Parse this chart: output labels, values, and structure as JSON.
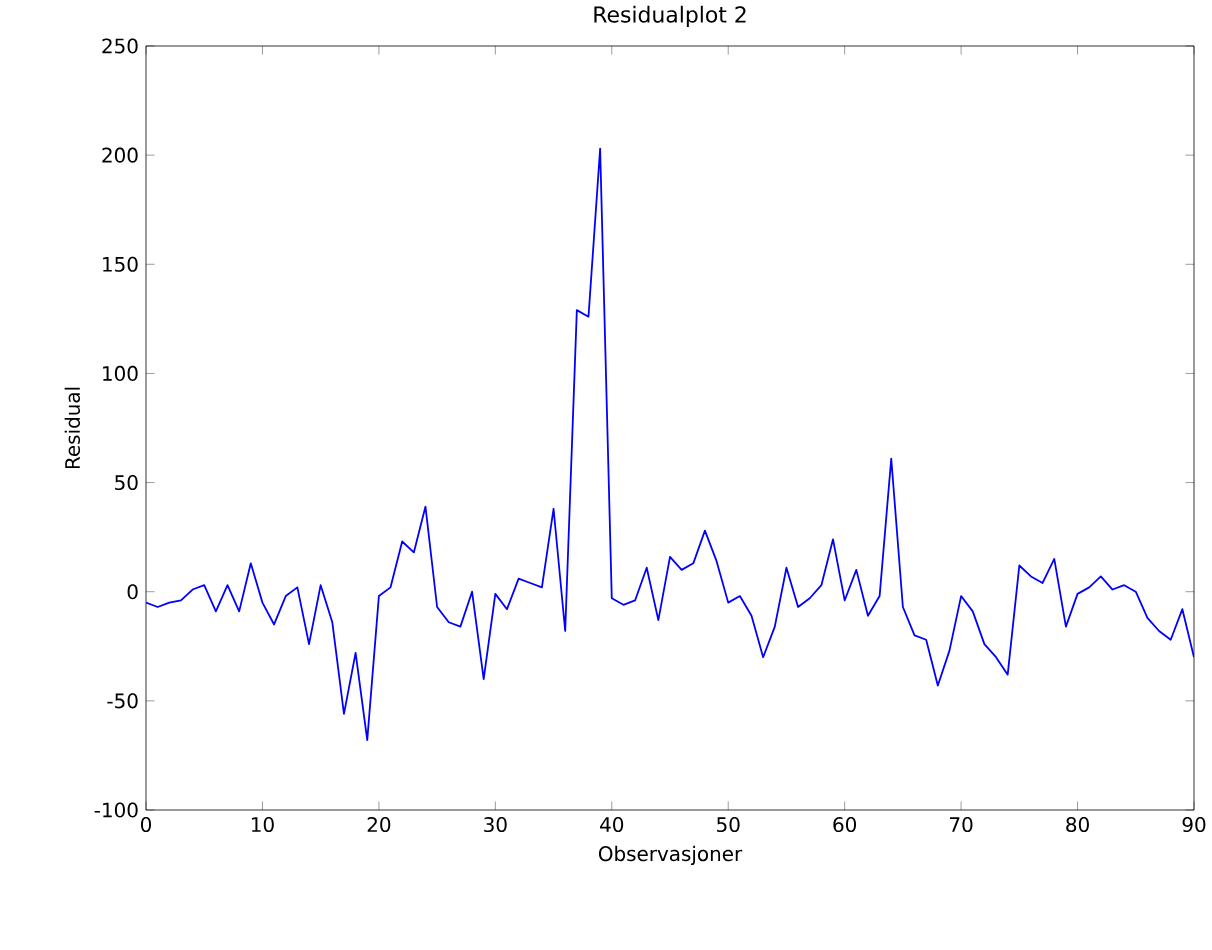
{
  "chart_data": {
    "type": "line",
    "title": "Residualplot 2",
    "xlabel": "Observasjoner",
    "ylabel": "Residual",
    "x": [
      0,
      1,
      2,
      3,
      4,
      5,
      6,
      7,
      8,
      9,
      10,
      11,
      12,
      13,
      14,
      15,
      16,
      17,
      18,
      19,
      20,
      21,
      22,
      23,
      24,
      25,
      26,
      27,
      28,
      29,
      30,
      31,
      32,
      33,
      34,
      35,
      36,
      37,
      38,
      39,
      40,
      41,
      42,
      43,
      44,
      45,
      46,
      47,
      48,
      49,
      50,
      51,
      52,
      53,
      54,
      55,
      56,
      57,
      58,
      59,
      60,
      61,
      62,
      63,
      64,
      65,
      66,
      67,
      68,
      69,
      70,
      71,
      72,
      73,
      74,
      75,
      76,
      77,
      78,
      79,
      80,
      81,
      82,
      83,
      84,
      85,
      86,
      87,
      88,
      89,
      90
    ],
    "series": [
      {
        "color": "#0000ff",
        "values": [
          -5,
          -7,
          -5,
          -4,
          1,
          3,
          -9,
          3,
          -9,
          13,
          -5,
          -15,
          -2,
          2,
          -24,
          3,
          -14,
          -56,
          -28,
          -68,
          -2,
          2,
          23,
          18,
          39,
          -7,
          -14,
          -16,
          0,
          -40,
          -1,
          -8,
          6,
          4,
          2,
          38,
          -18,
          129,
          126,
          203,
          -3,
          -6,
          -4,
          11,
          -13,
          16,
          10,
          13,
          28,
          14,
          -5,
          -2,
          -11,
          -30,
          -16,
          11,
          -7,
          -3,
          3,
          24,
          -4,
          10,
          -11,
          -2,
          61,
          -7,
          -20,
          -22,
          -43,
          -27,
          -2,
          -9,
          -24,
          -30,
          -38,
          12,
          7,
          4,
          15,
          -16,
          -1,
          2,
          7,
          1,
          3,
          0,
          -12,
          -18,
          -22,
          -8,
          -30
        ]
      }
    ],
    "xlim": [
      0,
      90
    ],
    "ylim": [
      -100,
      250
    ],
    "xticks": [
      0,
      10,
      20,
      30,
      40,
      50,
      60,
      70,
      80,
      90
    ],
    "yticks": [
      -100,
      -50,
      0,
      50,
      100,
      150,
      200,
      250
    ],
    "marker": "none",
    "line_style": "solid"
  }
}
